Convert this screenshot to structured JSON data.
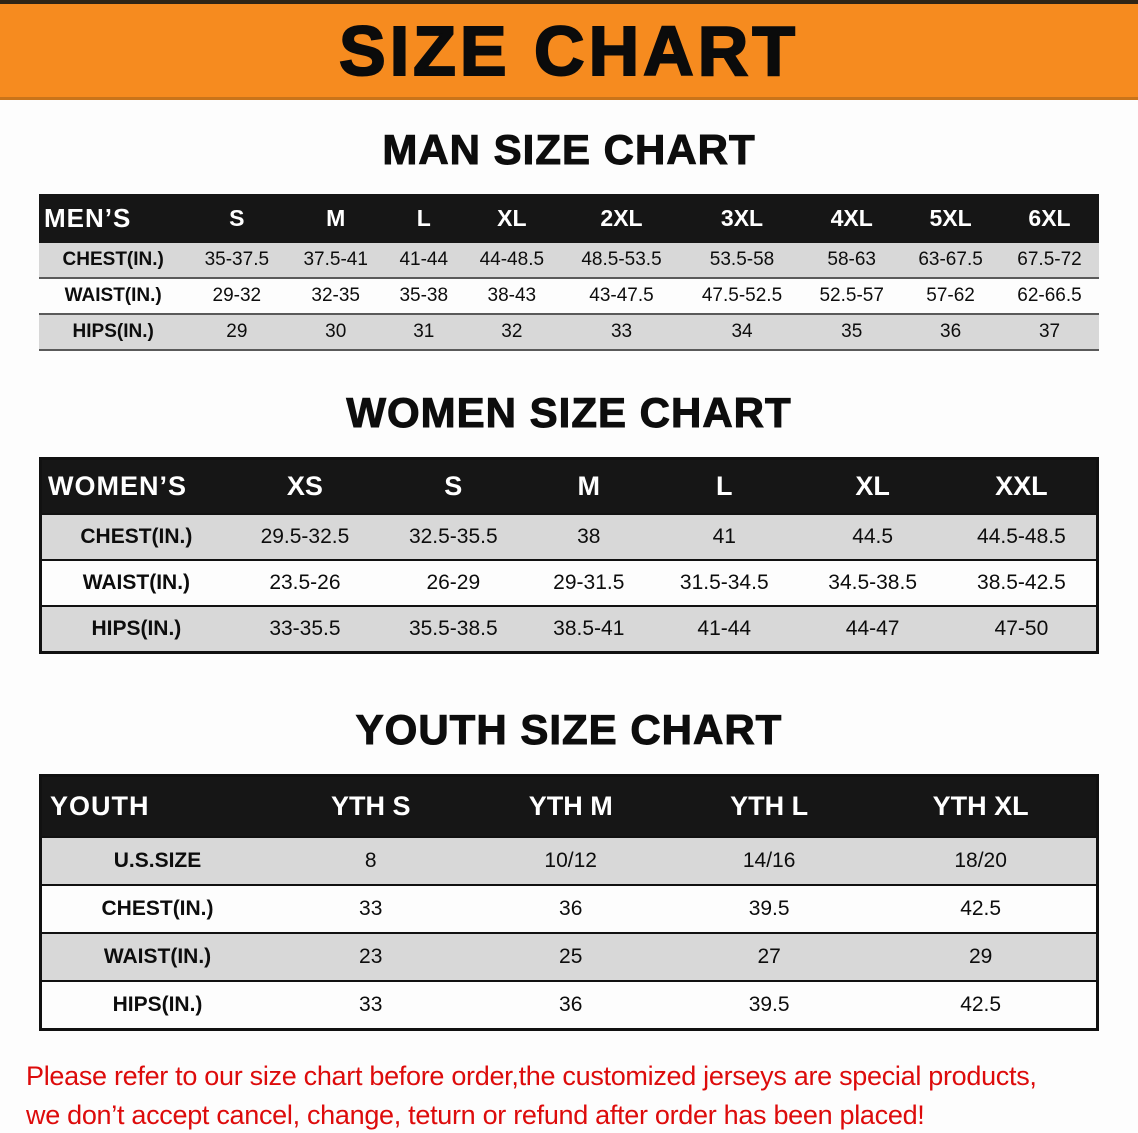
{
  "banner": {
    "title": "SIZE CHART",
    "bg_color": "#f68b1f",
    "text_color": "#0b0b0b"
  },
  "sections": [
    {
      "id": "mens",
      "heading": "MAN SIZE CHART",
      "table": {
        "header": [
          "MEN’S",
          "S",
          "M",
          "L",
          "XL",
          "2XL",
          "3XL",
          "4XL",
          "5XL",
          "6XL"
        ],
        "rows": [
          [
            "CHEST(IN.)",
            "35-37.5",
            "37.5-41",
            "41-44",
            "44-48.5",
            "48.5-53.5",
            "53.5-58",
            "58-63",
            "63-67.5",
            "67.5-72"
          ],
          [
            "WAIST(IN.)",
            "29-32",
            "32-35",
            "35-38",
            "38-43",
            "43-47.5",
            "47.5-52.5",
            "52.5-57",
            "57-62",
            "62-66.5"
          ],
          [
            "HIPS(IN.)",
            "29",
            "30",
            "31",
            "32",
            "33",
            "34",
            "35",
            "36",
            "37"
          ]
        ]
      }
    },
    {
      "id": "womens",
      "heading": "WOMEN SIZE CHART",
      "table": {
        "header": [
          "WOMEN’S",
          "XS",
          "S",
          "M",
          "L",
          "XL",
          "XXL"
        ],
        "rows": [
          [
            "CHEST(IN.)",
            "29.5-32.5",
            "32.5-35.5",
            "38",
            "41",
            "44.5",
            "44.5-48.5"
          ],
          [
            "WAIST(IN.)",
            "23.5-26",
            "26-29",
            "29-31.5",
            "31.5-34.5",
            "34.5-38.5",
            "38.5-42.5"
          ],
          [
            "HIPS(IN.)",
            "33-35.5",
            "35.5-38.5",
            "38.5-41",
            "41-44",
            "44-47",
            "47-50"
          ]
        ]
      }
    },
    {
      "id": "youth",
      "heading": "YOUTH SIZE CHART",
      "table": {
        "header": [
          "YOUTH",
          "YTH S",
          "YTH M",
          "YTH L",
          "YTH XL"
        ],
        "rows": [
          [
            "U.S.SIZE",
            "8",
            "10/12",
            "14/16",
            "18/20"
          ],
          [
            "CHEST(IN.)",
            "33",
            "36",
            "39.5",
            "42.5"
          ],
          [
            "WAIST(IN.)",
            "23",
            "25",
            "27",
            "29"
          ],
          [
            "HIPS(IN.)",
            "33",
            "36",
            "39.5",
            "42.5"
          ]
        ]
      }
    }
  ],
  "disclaimer": {
    "color": "#dd0b0b",
    "line1": "Please refer to our size chart before order,the customized jerseys are special products,",
    "line2": "we don’t accept cancel, change, teturn or refund after order has been placed!"
  }
}
